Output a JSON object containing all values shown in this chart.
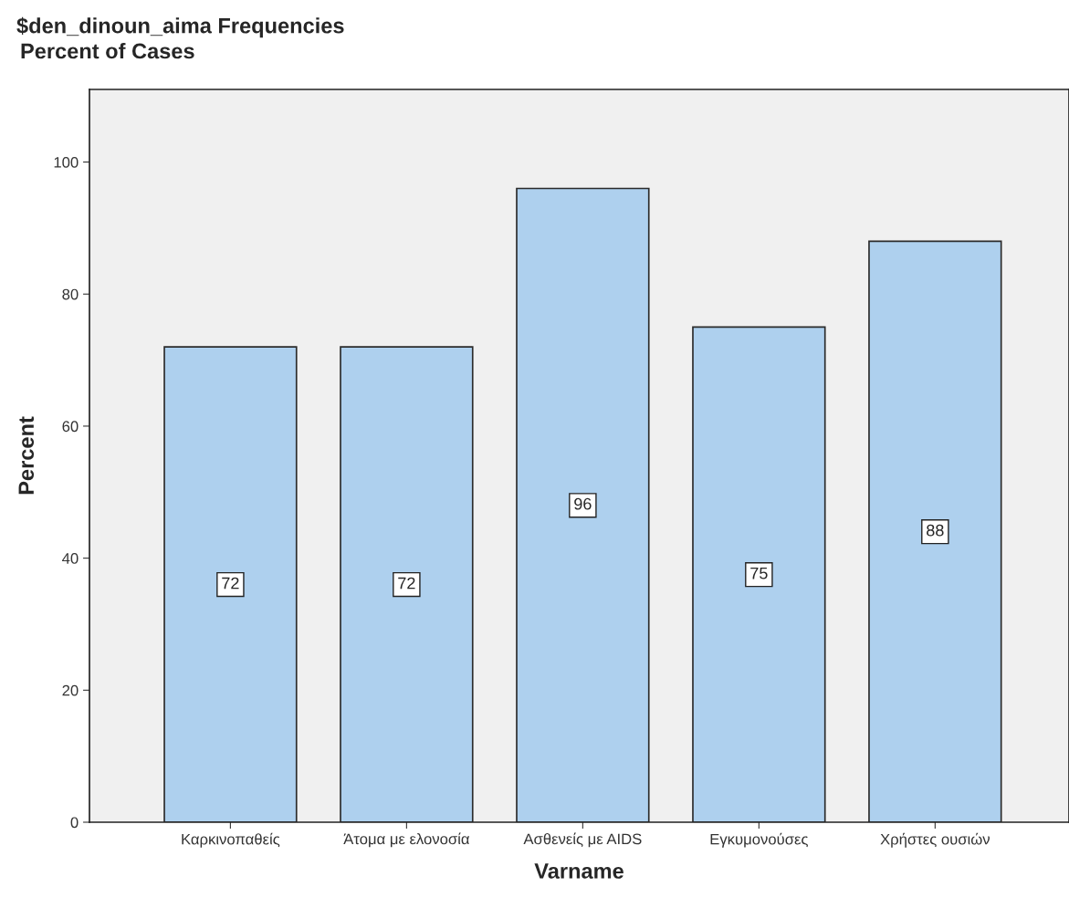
{
  "chart_data": {
    "type": "bar",
    "title": "$den_dinoun_aima Frequencies",
    "subtitle": "Percent of Cases",
    "xlabel": "Varname",
    "ylabel": "Percent",
    "categories": [
      "Καρκινοπαθείς",
      "Άτομα με ελονοσία",
      "Ασθενείς με AIDS",
      "Εγκυμονούσες",
      "Χρήστες ουσιών"
    ],
    "values": [
      72,
      72,
      96,
      75,
      88
    ],
    "color": "#aed0ee",
    "ylim": [
      0,
      111
    ],
    "yticks": [
      0,
      20,
      40,
      60,
      80,
      100
    ],
    "grid": false,
    "data_labels": true,
    "legend": false
  }
}
